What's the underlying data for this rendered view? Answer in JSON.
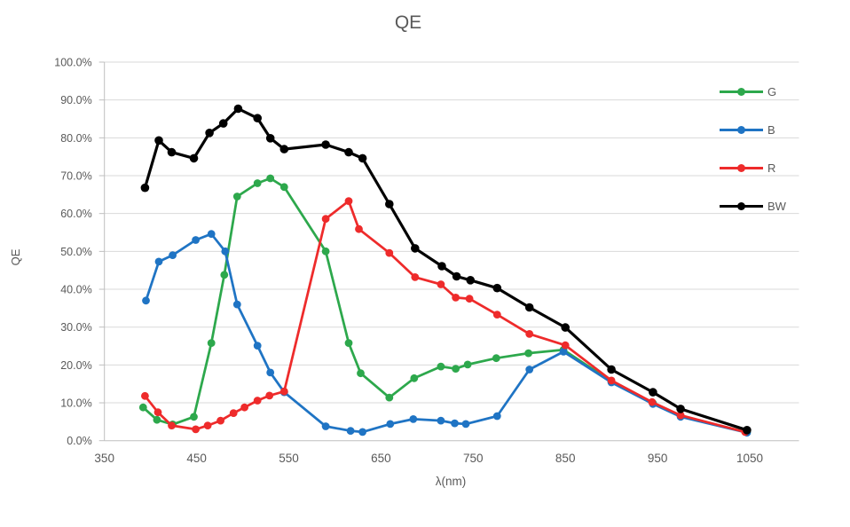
{
  "chart": {
    "title": "QE",
    "x_axis_title": "λ(nm)",
    "y_axis_title": "QE"
  },
  "chart_data": {
    "type": "line",
    "title": "QE",
    "xlabel": "λ(nm)",
    "ylabel": "QE",
    "xlim": [
      350,
      1100
    ],
    "ylim": [
      0,
      1.0
    ],
    "y_unit": "percent",
    "grid": true,
    "legend_position": "right-inside",
    "x_ticks": [
      350,
      450,
      550,
      650,
      750,
      850,
      950,
      1050
    ],
    "x_tick_labels": [
      "350",
      "450",
      "550",
      "650",
      "750",
      "850",
      "950",
      "1050"
    ],
    "y_tick_labels": [
      "0.0%",
      "10.0%",
      "20.0%",
      "30.0%",
      "40.0%",
      "50.0%",
      "60.0%",
      "70.0%",
      "80.0%",
      "90.0%",
      "100.0%"
    ],
    "series": [
      {
        "name": "G",
        "color": "#2DA84C",
        "points": [
          [
            392,
            8.8
          ],
          [
            407,
            5.5
          ],
          [
            424,
            4.3
          ],
          [
            447,
            6.3
          ],
          [
            466,
            25.8
          ],
          [
            480,
            43.8
          ],
          [
            494,
            64.5
          ],
          [
            516,
            68.0
          ],
          [
            530,
            69.3
          ],
          [
            545,
            67.0
          ],
          [
            590,
            50.0
          ],
          [
            615,
            25.8
          ],
          [
            628,
            17.8
          ],
          [
            659,
            11.4
          ],
          [
            686,
            16.5
          ],
          [
            715,
            19.6
          ],
          [
            731,
            19.0
          ],
          [
            744,
            20.1
          ],
          [
            775,
            21.8
          ],
          [
            810,
            23.1
          ],
          [
            848,
            24.0
          ],
          [
            900,
            15.6
          ],
          [
            945,
            9.9
          ],
          [
            975,
            6.5
          ],
          [
            1047,
            2.2
          ]
        ]
      },
      {
        "name": "B",
        "color": "#1F74C4",
        "points": [
          [
            395,
            37.0
          ],
          [
            409,
            47.3
          ],
          [
            424,
            49.0
          ],
          [
            449,
            53.0
          ],
          [
            466,
            54.6
          ],
          [
            481,
            50.0
          ],
          [
            494,
            36.0
          ],
          [
            516,
            25.1
          ],
          [
            530,
            18.0
          ],
          [
            545,
            12.8
          ],
          [
            590,
            3.8
          ],
          [
            617,
            2.6
          ],
          [
            630,
            2.3
          ],
          [
            660,
            4.4
          ],
          [
            685,
            5.7
          ],
          [
            715,
            5.3
          ],
          [
            730,
            4.6
          ],
          [
            742,
            4.4
          ],
          [
            776,
            6.5
          ],
          [
            811,
            18.8
          ],
          [
            848,
            23.5
          ],
          [
            900,
            15.4
          ],
          [
            945,
            9.7
          ],
          [
            975,
            6.3
          ],
          [
            1047,
            2.1
          ]
        ]
      },
      {
        "name": "R",
        "color": "#EE2B2B",
        "points": [
          [
            394,
            11.8
          ],
          [
            408,
            7.5
          ],
          [
            423,
            4.0
          ],
          [
            449,
            3.0
          ],
          [
            462,
            4.0
          ],
          [
            476,
            5.3
          ],
          [
            490,
            7.3
          ],
          [
            502,
            8.8
          ],
          [
            516,
            10.6
          ],
          [
            529,
            11.9
          ],
          [
            545,
            13.0
          ],
          [
            590,
            58.6
          ],
          [
            615,
            63.3
          ],
          [
            626,
            55.9
          ],
          [
            659,
            49.6
          ],
          [
            687,
            43.2
          ],
          [
            715,
            41.3
          ],
          [
            731,
            37.8
          ],
          [
            746,
            37.5
          ],
          [
            776,
            33.3
          ],
          [
            811,
            28.2
          ],
          [
            850,
            25.2
          ],
          [
            900,
            15.9
          ],
          [
            944,
            10.2
          ],
          [
            975,
            6.7
          ],
          [
            1045,
            2.3
          ]
        ]
      },
      {
        "name": "BW",
        "color": "#000000",
        "points": [
          [
            394,
            66.8
          ],
          [
            409,
            79.3
          ],
          [
            423,
            76.2
          ],
          [
            447,
            74.6
          ],
          [
            464,
            81.3
          ],
          [
            479,
            83.8
          ],
          [
            495,
            87.7
          ],
          [
            516,
            85.2
          ],
          [
            530,
            79.9
          ],
          [
            545,
            77.0
          ],
          [
            590,
            78.2
          ],
          [
            615,
            76.2
          ],
          [
            630,
            74.6
          ],
          [
            659,
            62.5
          ],
          [
            687,
            50.8
          ],
          [
            716,
            46.1
          ],
          [
            732,
            43.4
          ],
          [
            747,
            42.4
          ],
          [
            776,
            40.3
          ],
          [
            811,
            35.2
          ],
          [
            850,
            29.9
          ],
          [
            900,
            18.8
          ],
          [
            945,
            12.8
          ],
          [
            975,
            8.4
          ],
          [
            1047,
            2.8
          ]
        ]
      }
    ]
  },
  "colors": {
    "gridline": "#D9D9D9",
    "axis_line": "#BFBFBF",
    "label_text": "#595959"
  }
}
